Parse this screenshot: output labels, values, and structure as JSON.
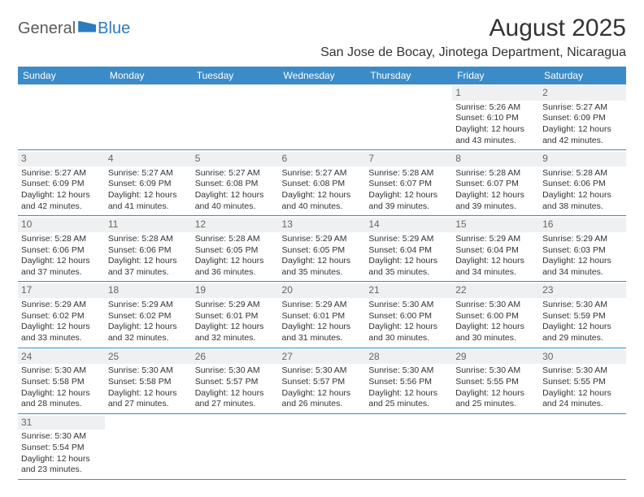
{
  "logo": {
    "general": "General",
    "blue": "Blue"
  },
  "header": {
    "month_title": "August 2025",
    "location": "San Jose de Bocay, Jinotega Department, Nicaragua"
  },
  "colors": {
    "header_bg": "#3b8bc8",
    "header_text": "#ffffff",
    "row_border": "#3b8bc8",
    "daynum_bg": "#eef0f2",
    "logo_gray": "#5a5a5a",
    "logo_blue": "#2b7bbf"
  },
  "weekdays": [
    "Sunday",
    "Monday",
    "Tuesday",
    "Wednesday",
    "Thursday",
    "Friday",
    "Saturday"
  ],
  "weeks": [
    [
      null,
      null,
      null,
      null,
      null,
      {
        "day": "1",
        "sunrise": "Sunrise: 5:26 AM",
        "sunset": "Sunset: 6:10 PM",
        "daylight": "Daylight: 12 hours and 43 minutes."
      },
      {
        "day": "2",
        "sunrise": "Sunrise: 5:27 AM",
        "sunset": "Sunset: 6:09 PM",
        "daylight": "Daylight: 12 hours and 42 minutes."
      }
    ],
    [
      {
        "day": "3",
        "sunrise": "Sunrise: 5:27 AM",
        "sunset": "Sunset: 6:09 PM",
        "daylight": "Daylight: 12 hours and 42 minutes."
      },
      {
        "day": "4",
        "sunrise": "Sunrise: 5:27 AM",
        "sunset": "Sunset: 6:09 PM",
        "daylight": "Daylight: 12 hours and 41 minutes."
      },
      {
        "day": "5",
        "sunrise": "Sunrise: 5:27 AM",
        "sunset": "Sunset: 6:08 PM",
        "daylight": "Daylight: 12 hours and 40 minutes."
      },
      {
        "day": "6",
        "sunrise": "Sunrise: 5:27 AM",
        "sunset": "Sunset: 6:08 PM",
        "daylight": "Daylight: 12 hours and 40 minutes."
      },
      {
        "day": "7",
        "sunrise": "Sunrise: 5:28 AM",
        "sunset": "Sunset: 6:07 PM",
        "daylight": "Daylight: 12 hours and 39 minutes."
      },
      {
        "day": "8",
        "sunrise": "Sunrise: 5:28 AM",
        "sunset": "Sunset: 6:07 PM",
        "daylight": "Daylight: 12 hours and 39 minutes."
      },
      {
        "day": "9",
        "sunrise": "Sunrise: 5:28 AM",
        "sunset": "Sunset: 6:06 PM",
        "daylight": "Daylight: 12 hours and 38 minutes."
      }
    ],
    [
      {
        "day": "10",
        "sunrise": "Sunrise: 5:28 AM",
        "sunset": "Sunset: 6:06 PM",
        "daylight": "Daylight: 12 hours and 37 minutes."
      },
      {
        "day": "11",
        "sunrise": "Sunrise: 5:28 AM",
        "sunset": "Sunset: 6:06 PM",
        "daylight": "Daylight: 12 hours and 37 minutes."
      },
      {
        "day": "12",
        "sunrise": "Sunrise: 5:28 AM",
        "sunset": "Sunset: 6:05 PM",
        "daylight": "Daylight: 12 hours and 36 minutes."
      },
      {
        "day": "13",
        "sunrise": "Sunrise: 5:29 AM",
        "sunset": "Sunset: 6:05 PM",
        "daylight": "Daylight: 12 hours and 35 minutes."
      },
      {
        "day": "14",
        "sunrise": "Sunrise: 5:29 AM",
        "sunset": "Sunset: 6:04 PM",
        "daylight": "Daylight: 12 hours and 35 minutes."
      },
      {
        "day": "15",
        "sunrise": "Sunrise: 5:29 AM",
        "sunset": "Sunset: 6:04 PM",
        "daylight": "Daylight: 12 hours and 34 minutes."
      },
      {
        "day": "16",
        "sunrise": "Sunrise: 5:29 AM",
        "sunset": "Sunset: 6:03 PM",
        "daylight": "Daylight: 12 hours and 34 minutes."
      }
    ],
    [
      {
        "day": "17",
        "sunrise": "Sunrise: 5:29 AM",
        "sunset": "Sunset: 6:02 PM",
        "daylight": "Daylight: 12 hours and 33 minutes."
      },
      {
        "day": "18",
        "sunrise": "Sunrise: 5:29 AM",
        "sunset": "Sunset: 6:02 PM",
        "daylight": "Daylight: 12 hours and 32 minutes."
      },
      {
        "day": "19",
        "sunrise": "Sunrise: 5:29 AM",
        "sunset": "Sunset: 6:01 PM",
        "daylight": "Daylight: 12 hours and 32 minutes."
      },
      {
        "day": "20",
        "sunrise": "Sunrise: 5:29 AM",
        "sunset": "Sunset: 6:01 PM",
        "daylight": "Daylight: 12 hours and 31 minutes."
      },
      {
        "day": "21",
        "sunrise": "Sunrise: 5:30 AM",
        "sunset": "Sunset: 6:00 PM",
        "daylight": "Daylight: 12 hours and 30 minutes."
      },
      {
        "day": "22",
        "sunrise": "Sunrise: 5:30 AM",
        "sunset": "Sunset: 6:00 PM",
        "daylight": "Daylight: 12 hours and 30 minutes."
      },
      {
        "day": "23",
        "sunrise": "Sunrise: 5:30 AM",
        "sunset": "Sunset: 5:59 PM",
        "daylight": "Daylight: 12 hours and 29 minutes."
      }
    ],
    [
      {
        "day": "24",
        "sunrise": "Sunrise: 5:30 AM",
        "sunset": "Sunset: 5:58 PM",
        "daylight": "Daylight: 12 hours and 28 minutes."
      },
      {
        "day": "25",
        "sunrise": "Sunrise: 5:30 AM",
        "sunset": "Sunset: 5:58 PM",
        "daylight": "Daylight: 12 hours and 27 minutes."
      },
      {
        "day": "26",
        "sunrise": "Sunrise: 5:30 AM",
        "sunset": "Sunset: 5:57 PM",
        "daylight": "Daylight: 12 hours and 27 minutes."
      },
      {
        "day": "27",
        "sunrise": "Sunrise: 5:30 AM",
        "sunset": "Sunset: 5:57 PM",
        "daylight": "Daylight: 12 hours and 26 minutes."
      },
      {
        "day": "28",
        "sunrise": "Sunrise: 5:30 AM",
        "sunset": "Sunset: 5:56 PM",
        "daylight": "Daylight: 12 hours and 25 minutes."
      },
      {
        "day": "29",
        "sunrise": "Sunrise: 5:30 AM",
        "sunset": "Sunset: 5:55 PM",
        "daylight": "Daylight: 12 hours and 25 minutes."
      },
      {
        "day": "30",
        "sunrise": "Sunrise: 5:30 AM",
        "sunset": "Sunset: 5:55 PM",
        "daylight": "Daylight: 12 hours and 24 minutes."
      }
    ],
    [
      {
        "day": "31",
        "sunrise": "Sunrise: 5:30 AM",
        "sunset": "Sunset: 5:54 PM",
        "daylight": "Daylight: 12 hours and 23 minutes."
      },
      null,
      null,
      null,
      null,
      null,
      null
    ]
  ]
}
